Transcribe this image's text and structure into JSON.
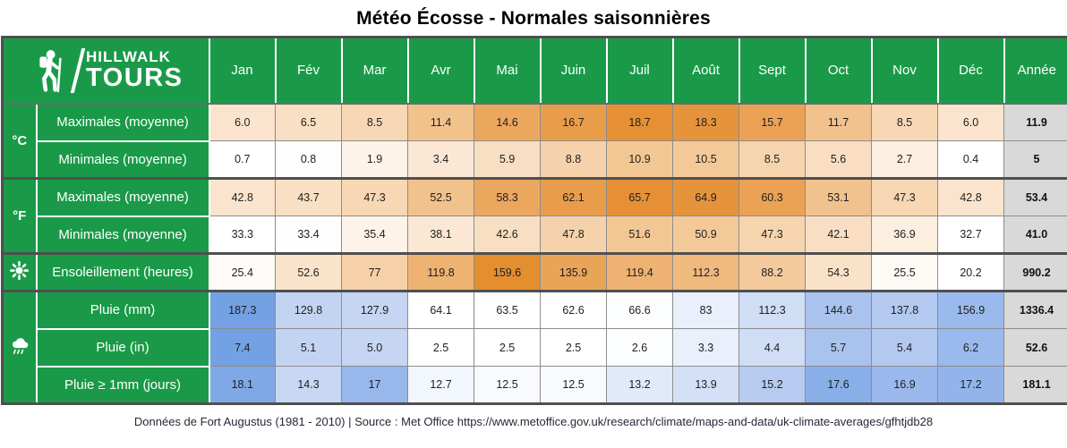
{
  "title": "Météo Écosse - Normales saisonnières",
  "logo": {
    "line1": "HILLWALK",
    "line2": "TOURS"
  },
  "footer": {
    "text": "Données de Fort Augustus (1981 - 2010) | Source : Met Office https://www.metoffice.gov.uk/research/climate/maps-and-data/uk-climate-averages/gfhtjdb28"
  },
  "colors": {
    "brand_green": "#1a9a48",
    "year_column_bg": "#d9d9d9",
    "grid_line": "#8c8c8c",
    "section_border": "#4f4f4f",
    "heat_orange_max": "#e38e2f",
    "heat_blue_max": "#74a1e4"
  },
  "columns": [
    "Jan",
    "Fév",
    "Mar",
    "Avr",
    "Mai",
    "Juin",
    "Juil",
    "Août",
    "Sept",
    "Oct",
    "Nov",
    "Déc",
    "Année"
  ],
  "groups": [
    {
      "id": "celsius",
      "icon": "celsius-icon",
      "icon_text": "°C",
      "rows": 2
    },
    {
      "id": "fahrenheit",
      "icon": "fahrenheit-icon",
      "icon_text": "°F",
      "rows": 2
    },
    {
      "id": "sun",
      "icon": "sun-icon",
      "icon_text": "",
      "rows": 1
    },
    {
      "id": "rain",
      "icon": "rain-cloud-icon",
      "icon_text": "",
      "rows": 3
    }
  ],
  "rows": [
    {
      "label": "Maximales (moyenne)",
      "values": [
        "6.0",
        "6.5",
        "8.5",
        "11.4",
        "14.6",
        "16.7",
        "18.7",
        "18.3",
        "15.7",
        "11.7",
        "8.5",
        "6.0"
      ],
      "year": "11.9",
      "cell_colors": [
        "#fbe4cd",
        "#f9dfc4",
        "#f7d7b4",
        "#f2c28d",
        "#eca75f",
        "#e99d4a",
        "#e69036",
        "#e6943c",
        "#eba255",
        "#f2c28e",
        "#f7d7b4",
        "#fbe4cd"
      ]
    },
    {
      "label": "Minimales (moyenne)",
      "values": [
        "0.7",
        "0.8",
        "1.9",
        "3.4",
        "5.9",
        "8.8",
        "10.9",
        "10.5",
        "8.5",
        "5.6",
        "2.7",
        "0.4"
      ],
      "year": "5",
      "cell_colors": [
        "#ffffff",
        "#fefefe",
        "#fdf3e9",
        "#fbe7d4",
        "#f8dec2",
        "#f5d2ab",
        "#f3c794",
        "#f3c999",
        "#f6d4ae",
        "#f9dec3",
        "#fcefdf",
        "#ffffff"
      ]
    },
    {
      "label": "Maximales (moyenne)",
      "values": [
        "42.8",
        "43.7",
        "47.3",
        "52.5",
        "58.3",
        "62.1",
        "65.7",
        "64.9",
        "60.3",
        "53.1",
        "47.3",
        "42.8"
      ],
      "year": "53.4",
      "cell_colors": [
        "#fbe4cd",
        "#f9dfc4",
        "#f7d7b4",
        "#f2c28d",
        "#eca75f",
        "#e99d4a",
        "#e69036",
        "#e6943c",
        "#eba255",
        "#f2c28e",
        "#f7d7b4",
        "#fbe4cd"
      ]
    },
    {
      "label": "Minimales (moyenne)",
      "values": [
        "33.3",
        "33.4",
        "35.4",
        "38.1",
        "42.6",
        "47.8",
        "51.6",
        "50.9",
        "47.3",
        "42.1",
        "36.9",
        "32.7"
      ],
      "year": "41.0",
      "cell_colors": [
        "#ffffff",
        "#fefefe",
        "#fdf3e9",
        "#fbe7d4",
        "#f8dec2",
        "#f5d2ab",
        "#f3c794",
        "#f3c999",
        "#f6d4ae",
        "#f9dec3",
        "#fcefdf",
        "#ffffff"
      ]
    },
    {
      "label": "Ensoleillement (heures)",
      "values": [
        "25.4",
        "52.6",
        "77",
        "119.8",
        "159.6",
        "135.9",
        "119.4",
        "112.3",
        "88.2",
        "54.3",
        "25.5",
        "20.2"
      ],
      "year": "990.2",
      "cell_colors": [
        "#fefbf8",
        "#fae3cb",
        "#f6d1a8",
        "#eeb271",
        "#e38e2f",
        "#eaa458",
        "#eeb272",
        "#f0b97e",
        "#f4ca9d",
        "#fae2c9",
        "#fefbf7",
        "#ffffff"
      ]
    },
    {
      "label": "Pluie (mm)",
      "values": [
        "187.3",
        "129.8",
        "127.9",
        "64.1",
        "63.5",
        "62.6",
        "66.6",
        "83",
        "112.3",
        "144.6",
        "137.8",
        "156.9"
      ],
      "year": "1336.4",
      "cell_colors": [
        "#74a1e4",
        "#c3d4f2",
        "#c5d5f2",
        "#ffffff",
        "#ffffff",
        "#ffffff",
        "#fbfdfe",
        "#e9effb",
        "#cfddf5",
        "#a9c2ee",
        "#b3c9f0",
        "#9ab9ec"
      ]
    },
    {
      "label": "Pluie (in)",
      "values": [
        "7.4",
        "5.1",
        "5.0",
        "2.5",
        "2.5",
        "2.5",
        "2.6",
        "3.3",
        "4.4",
        "5.7",
        "5.4",
        "6.2"
      ],
      "year": "52.6",
      "cell_colors": [
        "#74a1e4",
        "#c3d4f2",
        "#c5d5f2",
        "#ffffff",
        "#ffffff",
        "#ffffff",
        "#fbfdfe",
        "#e9effb",
        "#cfddf5",
        "#a9c2ee",
        "#b3c9f0",
        "#9ab9ec"
      ]
    },
    {
      "label": "Pluie ≥ 1mm (jours)",
      "values": [
        "18.1",
        "14.3",
        "17",
        "12.7",
        "12.5",
        "12.5",
        "13.2",
        "13.9",
        "15.2",
        "17.6",
        "16.9",
        "17.2"
      ],
      "year": "181.1",
      "cell_colors": [
        "#7fa9e6",
        "#c8d7f3",
        "#98b7eb",
        "#f2f6fd",
        "#f8fafe",
        "#f8fafe",
        "#e2eaf9",
        "#d4e0f6",
        "#b7cbf0",
        "#88afe8",
        "#9ab8ec",
        "#93b4ea"
      ]
    }
  ],
  "chart_data": {
    "type": "table",
    "title": "Météo Écosse - Normales saisonnières",
    "categories": [
      "Jan",
      "Fév",
      "Mar",
      "Avr",
      "Mai",
      "Juin",
      "Juil",
      "Août",
      "Sept",
      "Oct",
      "Nov",
      "Déc"
    ],
    "annual_column_label": "Année",
    "series": [
      {
        "name": "Maximales (moyenne) °C",
        "values": [
          6.0,
          6.5,
          8.5,
          11.4,
          14.6,
          16.7,
          18.7,
          18.3,
          15.7,
          11.7,
          8.5,
          6.0
        ],
        "annual": 11.9
      },
      {
        "name": "Minimales (moyenne) °C",
        "values": [
          0.7,
          0.8,
          1.9,
          3.4,
          5.9,
          8.8,
          10.9,
          10.5,
          8.5,
          5.6,
          2.7,
          0.4
        ],
        "annual": 5
      },
      {
        "name": "Maximales (moyenne) °F",
        "values": [
          42.8,
          43.7,
          47.3,
          52.5,
          58.3,
          62.1,
          65.7,
          64.9,
          60.3,
          53.1,
          47.3,
          42.8
        ],
        "annual": 53.4
      },
      {
        "name": "Minimales (moyenne) °F",
        "values": [
          33.3,
          33.4,
          35.4,
          38.1,
          42.6,
          47.8,
          51.6,
          50.9,
          47.3,
          42.1,
          36.9,
          32.7
        ],
        "annual": 41.0
      },
      {
        "name": "Ensoleillement (heures)",
        "values": [
          25.4,
          52.6,
          77,
          119.8,
          159.6,
          135.9,
          119.4,
          112.3,
          88.2,
          54.3,
          25.5,
          20.2
        ],
        "annual": 990.2
      },
      {
        "name": "Pluie (mm)",
        "values": [
          187.3,
          129.8,
          127.9,
          64.1,
          63.5,
          62.6,
          66.6,
          83,
          112.3,
          144.6,
          137.8,
          156.9
        ],
        "annual": 1336.4
      },
      {
        "name": "Pluie (in)",
        "values": [
          7.4,
          5.1,
          5.0,
          2.5,
          2.5,
          2.5,
          2.6,
          3.3,
          4.4,
          5.7,
          5.4,
          6.2
        ],
        "annual": 52.6
      },
      {
        "name": "Pluie ≥ 1mm (jours)",
        "values": [
          18.1,
          14.3,
          17,
          12.7,
          12.5,
          12.5,
          13.2,
          13.9,
          15.2,
          17.6,
          16.9,
          17.2
        ],
        "annual": 181.1
      }
    ],
    "source_note": "Données de Fort Augustus (1981 - 2010) | Source : Met Office https://www.metoffice.gov.uk/research/climate/maps-and-data/uk-climate-averages/gfhtjdb28"
  }
}
